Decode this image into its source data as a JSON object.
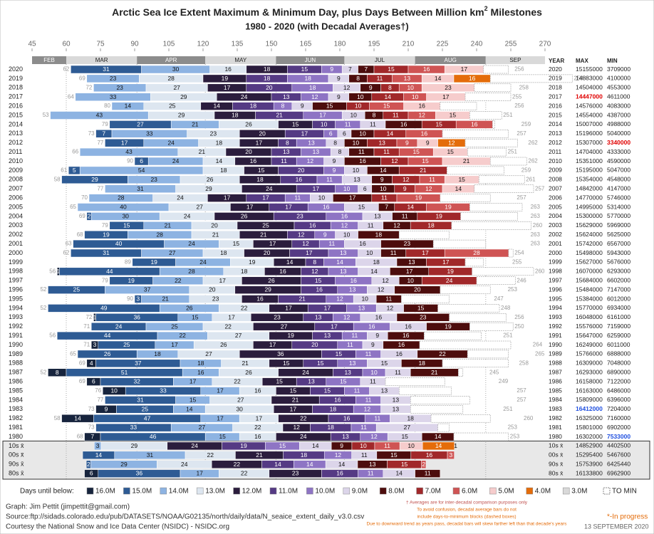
{
  "chart_data": {
    "type": "milestone-bars",
    "title": "Arctic Sea Ice Extent Maximum & Minimum Day, plus Days Between Million km",
    "title_sup": "2",
    "title_end": " Milestones",
    "subtitle": "1980 - 2020 (with Decadal Averages†)",
    "xlim": [
      45,
      270
    ],
    "xticks": [
      45,
      60,
      75,
      90,
      105,
      120,
      135,
      150,
      165,
      180,
      195,
      210,
      225,
      240,
      255,
      270
    ],
    "months": [
      "FEB",
      "MAR",
      "APR",
      "MAY",
      "JUN",
      "JUL",
      "AUG",
      "SEP"
    ],
    "table_headers": [
      "YEAR",
      "MAX",
      "MIN"
    ],
    "legend_title": "Days until below:",
    "thresholds": [
      {
        "label": "16.0M",
        "color": "#17243d"
      },
      {
        "label": "15.0M",
        "color": "#2e5b94"
      },
      {
        "label": "14.0M",
        "color": "#8db3e2"
      },
      {
        "label": "13.0M",
        "color": "#dde6f0"
      },
      {
        "label": "12.0M",
        "color": "#2b1d3d"
      },
      {
        "label": "11.0M",
        "color": "#553a84"
      },
      {
        "label": "10.0M",
        "color": "#8e74c4"
      },
      {
        "label": "9.0M",
        "color": "#dcd5ea"
      },
      {
        "label": "8.0M",
        "color": "#4d0d0d"
      },
      {
        "label": "7.0M",
        "color": "#a1282a"
      },
      {
        "label": "6.0M",
        "color": "#cf5454"
      },
      {
        "label": "5.0M",
        "color": "#f6cccc"
      },
      {
        "label": "4.0M",
        "color": "#e46c0a"
      },
      {
        "label": "3.0M",
        "color": "#d9d9d9"
      }
    ],
    "to_min_label": "TO MIN",
    "rows": [
      {
        "label": "2020",
        "start": 62,
        "days": [
          31,
          30,
          16,
          18,
          15,
          9,
          7,
          7,
          15,
          16,
          17,
          11
        ],
        "end": 256,
        "max": 15155000,
        "min": 3709000
      },
      {
        "label": "2019",
        "start": 69,
        "days": [
          23,
          28,
          19,
          18,
          18,
          9,
          8,
          11,
          13,
          14,
          16,
          36
        ],
        "end": 258,
        "max": 14883000,
        "min": 4100000
      },
      {
        "label": "2018",
        "start": 72,
        "days": [
          23,
          27,
          17,
          20,
          18,
          12,
          9,
          8,
          10,
          23,
          16
        ],
        "end": 258,
        "max": 14504000,
        "min": 4553000
      },
      {
        "label": "2017",
        "start": 64,
        "days": [
          33,
          29,
          24,
          13,
          12,
          9,
          10,
          14,
          10,
          17,
          20
        ],
        "end": 255,
        "max": 14447000,
        "min": 4611000,
        "max_color": "#e00000"
      },
      {
        "label": "2016",
        "start": 80,
        "days": [
          14,
          25,
          14,
          18,
          8,
          9,
          15,
          10,
          15,
          16,
          16
        ],
        "end": 256,
        "max": 14576000,
        "min": 4083000
      },
      {
        "label": "2015",
        "start": 53,
        "days": [
          43,
          29,
          18,
          21,
          17,
          10,
          8,
          11,
          12,
          15,
          14
        ],
        "end": 251,
        "max": 14554000,
        "min": 4387000
      },
      {
        "label": "2014",
        "start": 79,
        "days": [
          27,
          21,
          26,
          15,
          10,
          11,
          11,
          16,
          15,
          16,
          1
        ],
        "end": 259,
        "max": 15007000,
        "min": 4988000
      },
      {
        "label": "2013",
        "start": 73,
        "days": [
          7,
          33,
          23,
          20,
          17,
          6,
          6,
          10,
          14,
          16,
          29
        ],
        "end": 257,
        "max": 15196000,
        "min": 5040000
      },
      {
        "label": "2012",
        "start": 77,
        "days": [
          17,
          24,
          18,
          17,
          8,
          13,
          8,
          10,
          13,
          9,
          9,
          12,
          23
        ],
        "end": 262,
        "max": 15307000,
        "min": 3340000,
        "min_color": "#e00000"
      },
      {
        "label": "2011",
        "start": 66,
        "days": [
          43,
          21,
          20,
          13,
          13,
          8,
          11,
          11,
          15,
          15,
          17
        ],
        "end": 251,
        "max": 14704000,
        "min": 4333000
      },
      {
        "label": "2010",
        "start": 90,
        "days": [
          6,
          24,
          14,
          16,
          11,
          12,
          9,
          16,
          12,
          15,
          21,
          16
        ],
        "end": 262,
        "max": 15351000,
        "min": 4590000
      },
      {
        "label": "2009",
        "start": 61,
        "days": [
          5,
          54,
          18,
          15,
          20,
          9,
          10,
          14,
          21,
          25
        ],
        "end": 259,
        "max": 15195000,
        "min": 5047000
      },
      {
        "label": "2008",
        "start": 58,
        "days": [
          29,
          23,
          26,
          18,
          16,
          11,
          13,
          9,
          12,
          11,
          15,
          20
        ],
        "end": 261,
        "max": 15354000,
        "min": 4548000
      },
      {
        "label": "2007",
        "start": 77,
        "days": [
          31,
          29,
          24,
          17,
          10,
          6,
          10,
          9,
          12,
          14,
          26
        ],
        "end": 257,
        "max": 14842000,
        "min": 4147000
      },
      {
        "label": "2006",
        "start": 70,
        "days": [
          28,
          24,
          17,
          17,
          11,
          10,
          17,
          11,
          19,
          22
        ],
        "end": 257,
        "max": 14770000,
        "min": 5746000
      },
      {
        "label": "2005",
        "start": 65,
        "days": [
          40,
          27,
          17,
          17,
          16,
          15,
          7,
          14,
          19,
          23
        ],
        "end": 263,
        "max": 14995000,
        "min": 5314000
      },
      {
        "label": "2004",
        "start": 69,
        "days": [
          2,
          30,
          24,
          26,
          23,
          16,
          13,
          11,
          19,
          25
        ],
        "end": 263,
        "max": 15300000,
        "min": 5770000
      },
      {
        "label": "2003",
        "start": 79,
        "days": [
          15,
          21,
          20,
          25,
          16,
          12,
          11,
          12,
          18,
          35
        ],
        "end": 260,
        "max": 15629000,
        "min": 5969000
      },
      {
        "label": "2002",
        "start": 68,
        "days": [
          19,
          28,
          21,
          21,
          12,
          9,
          10,
          18,
          22
        ],
        "end": 263,
        "max": 15624000,
        "min": 5625000
      },
      {
        "label": "2001",
        "start": 63,
        "days": [
          40,
          24,
          15,
          17,
          12,
          11,
          16,
          23,
          23
        ],
        "end": 263,
        "max": 15742000,
        "min": 6567000
      },
      {
        "label": "2000",
        "start": 62,
        "days": [
          31,
          27,
          18,
          20,
          17,
          13,
          10,
          11,
          17,
          28,
          2
        ],
        "end": 254,
        "max": 15498000,
        "min": 5943000
      },
      {
        "label": "1999",
        "start": 89,
        "days": [
          19,
          24,
          19,
          14,
          8,
          14,
          18,
          13,
          17,
          8
        ],
        "end": 255,
        "max": 15627000,
        "min": 5676000
      },
      {
        "label": "1998",
        "start": 56,
        "days": [
          1,
          44,
          28,
          18,
          16,
          12,
          13,
          14,
          17,
          19,
          27
        ],
        "end": 260,
        "max": 16070000,
        "min": 6293000
      },
      {
        "label": "1997",
        "start": 79,
        "days": [
          19,
          22,
          17,
          26,
          15,
          16,
          12,
          10,
          24,
          17
        ],
        "end": 246,
        "max": 15684000,
        "min": 6602000
      },
      {
        "label": "1996",
        "start": 52,
        "days": [
          25,
          37,
          20,
          29,
          16,
          13,
          12,
          20,
          22
        ],
        "end": 253,
        "max": 15484000,
        "min": 7147000
      },
      {
        "label": "1995",
        "start": 90,
        "days": [
          3,
          21,
          23,
          16,
          21,
          12,
          10,
          11,
          21
        ],
        "end": 247,
        "max": 15384000,
        "min": 6012000
      },
      {
        "label": "1994",
        "start": 52,
        "days": [
          49,
          26,
          22,
          17,
          17,
          13,
          12,
          15,
          27
        ],
        "end": 248,
        "max": 15770000,
        "min": 6934000
      },
      {
        "label": "1993",
        "start": 72,
        "days": [
          1,
          36,
          15,
          17,
          23,
          13,
          12,
          16,
          23,
          25
        ],
        "end": 256,
        "max": 16048000,
        "min": 6161000
      },
      {
        "label": "1992",
        "start": 71,
        "days": [
          24,
          25,
          22,
          27,
          17,
          16,
          16,
          19,
          19
        ],
        "end": 250,
        "max": 15576000,
        "min": 7159000
      },
      {
        "label": "1991",
        "start": 56,
        "days": [
          44,
          22,
          27,
          19,
          13,
          11,
          9,
          16,
          25
        ],
        "end": 251,
        "max": 15647000,
        "min": 6259000
      },
      {
        "label": "1990",
        "start": 71,
        "days": [
          3,
          25,
          17,
          26,
          17,
          20,
          11,
          9,
          16,
          40
        ],
        "end": 264,
        "max": 16249000,
        "min": 6011000
      },
      {
        "label": "1989",
        "start": 65,
        "days": [
          26,
          18,
          27,
          36,
          15,
          11,
          16,
          22,
          18
        ],
        "end": 265,
        "max": 15766000,
        "min": 6888000
      },
      {
        "label": "1988",
        "start": 69,
        "days": [
          4,
          37,
          18,
          21,
          15,
          15,
          13,
          15,
          18,
          29
        ],
        "end": 258,
        "max": 16309000,
        "min": 7048000
      },
      {
        "label": "1987",
        "start": 52,
        "days": [
          8,
          51,
          16,
          26,
          24,
          13,
          10,
          11,
          21,
          2
        ],
        "end": 245,
        "max": 16293000,
        "min": 6890000
      },
      {
        "label": "1986",
        "start": 69,
        "days": [
          6,
          32,
          17,
          22,
          15,
          13,
          15,
          11,
          26
        ],
        "end": 249,
        "max": 16158000,
        "min": 7122000
      },
      {
        "label": "1985",
        "start": 76,
        "days": [
          10,
          33,
          17,
          16,
          15,
          15,
          11,
          13,
          23
        ],
        "end": 257,
        "max": 16163000,
        "min": 6486000
      },
      {
        "label": "1984",
        "start": 77,
        "days": [
          31,
          15,
          27,
          21,
          16,
          11,
          13,
          26
        ],
        "end": 257,
        "max": 15809000,
        "min": 6396000
      },
      {
        "label": "1983",
        "start": 73,
        "days": [
          9,
          25,
          14,
          30,
          17,
          18,
          12,
          13,
          23
        ],
        "end": 251,
        "max": 16412000,
        "min": 7204000,
        "max_color": "#1f4fe0"
      },
      {
        "label": "1982",
        "start": 58,
        "days": [
          14,
          47,
          17,
          17,
          22,
          16,
          11,
          18,
          26
        ],
        "end": 260,
        "max": 16325000,
        "min": 7160000
      },
      {
        "label": "1981",
        "start": 73,
        "days": [
          33,
          27,
          22,
          12,
          18,
          11,
          27,
          5
        ],
        "end": 253,
        "max": 15801000,
        "min": 6902000
      },
      {
        "label": "1980",
        "start": 68,
        "days": [
          7,
          46,
          15,
          16,
          24,
          13,
          12,
          15,
          14,
          24
        ],
        "end": 253,
        "max": 16302000,
        "min": 7533000,
        "min_color": "#1f4fe0"
      }
    ],
    "decades": [
      {
        "label": "10s x̄",
        "days": [
          3,
          29,
          24,
          19,
          15,
          14,
          9,
          10,
          11,
          10,
          14,
          1
        ],
        "max": 14852900,
        "min": 4402500
      },
      {
        "label": "00s x̄",
        "days": [
          14,
          31,
          22,
          21,
          18,
          12,
          11,
          15,
          16,
          3
        ],
        "max": 15295400,
        "min": 5467600
      },
      {
        "label": "90s x̄",
        "days": [
          2,
          29,
          24,
          22,
          14,
          14,
          14,
          13,
          15,
          2
        ],
        "max": 15753900,
        "min": 6425440
      },
      {
        "label": "80s x̄",
        "days": [
          6,
          36,
          17,
          22,
          23,
          16,
          11,
          14,
          11
        ],
        "max": 16133800,
        "min": 6962900
      }
    ],
    "credits": [
      "Graph: Jim Pettit (jimpettit@gmail.com)",
      "Source:ftp://sidads.colorado.edu/pub/DATASETS/NOAA/G02135/north/daily/data/N_seaice_extent_daily_v3.0.csv",
      "Courtesy the National Snow and Ice Data Center (NSIDC) - NSIDC.org"
    ],
    "footnotes": [
      "† Averages are for inter-decadal comparison purposes only",
      "To avoid confusion, decadal average bars do not",
      "include days-to-minimum blocks (dashed boxes)",
      "Due to downward trend as years pass, decadal  bars will skew farther left than that decade's years"
    ],
    "in_progress": "*-In progress",
    "date": "13 SEPTEMBER 2020"
  }
}
